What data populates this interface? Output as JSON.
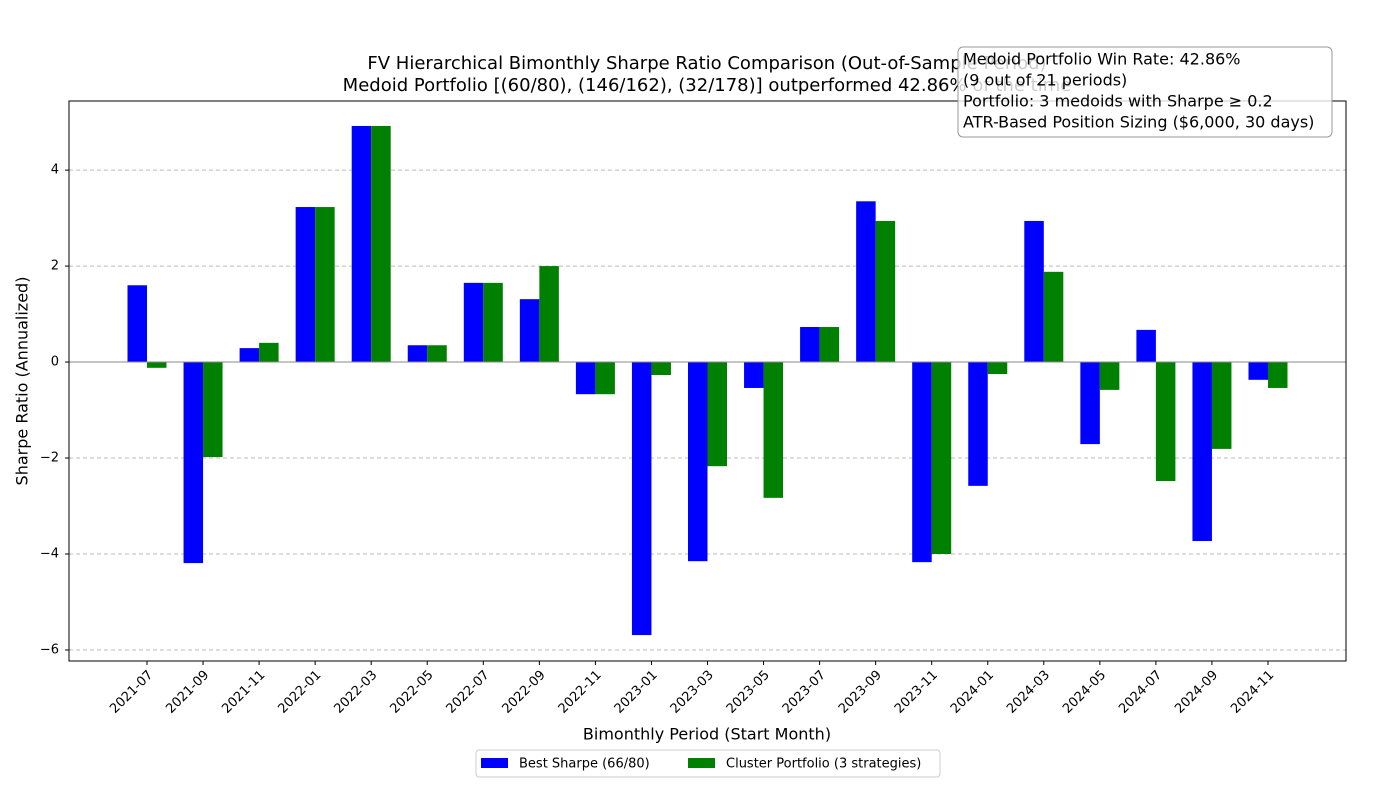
{
  "chart_data": {
    "type": "bar",
    "title": "FV Hierarchical Bimonthly Sharpe Ratio Comparison (Out-of-Sample Period)",
    "subtitle": "Medoid Portfolio [(60/80), (146/162), (32/178)] outperformed 42.86% of the time",
    "x_label": "Bimonthly Period (Start Month)",
    "y_label": "Sharpe Ratio (Annualized)",
    "annotation": [
      "Medoid Portfolio Win Rate: 42.86%",
      "(9 out of 21 periods)",
      "Portfolio: 3 medoids with Sharpe ≥ 0.2",
      "ATR-Based Position Sizing ($6,000, 30 days)"
    ],
    "categories": [
      "2021-07",
      "2021-09",
      "2021-11",
      "2022-01",
      "2022-03",
      "2022-05",
      "2022-07",
      "2022-09",
      "2022-11",
      "2023-01",
      "2023-03",
      "2023-05",
      "2023-07",
      "2023-09",
      "2023-11",
      "2024-01",
      "2024-03",
      "2024-05",
      "2024-07",
      "2024-09",
      "2024-11"
    ],
    "series": [
      {
        "name": "Best Sharpe (66/80)",
        "color": "#0000ff",
        "values": [
          1.6,
          -4.19,
          0.29,
          3.23,
          4.92,
          0.35,
          1.65,
          1.31,
          -0.67,
          -5.69,
          -4.15,
          -0.54,
          0.73,
          3.35,
          -4.17,
          -2.58,
          2.94,
          -1.71,
          0.67,
          -3.73,
          -0.37
        ]
      },
      {
        "name": "Cluster Portfolio (3 strategies)",
        "color": "#008000",
        "values": [
          -0.12,
          -1.98,
          0.4,
          3.23,
          4.92,
          0.35,
          1.65,
          2.0,
          -0.67,
          -0.27,
          -2.17,
          -2.83,
          0.73,
          2.94,
          -4.0,
          -0.25,
          1.88,
          -0.58,
          -2.48,
          -1.81,
          -0.54
        ]
      }
    ],
    "ylim": [
      -6.23,
      5.44
    ],
    "yticks": [
      {
        "value": -6,
        "label": "−6"
      },
      {
        "value": -4,
        "label": "−4"
      },
      {
        "value": -2,
        "label": "−2"
      },
      0,
      2,
      4
    ],
    "grid": true,
    "legend": "bottom"
  }
}
